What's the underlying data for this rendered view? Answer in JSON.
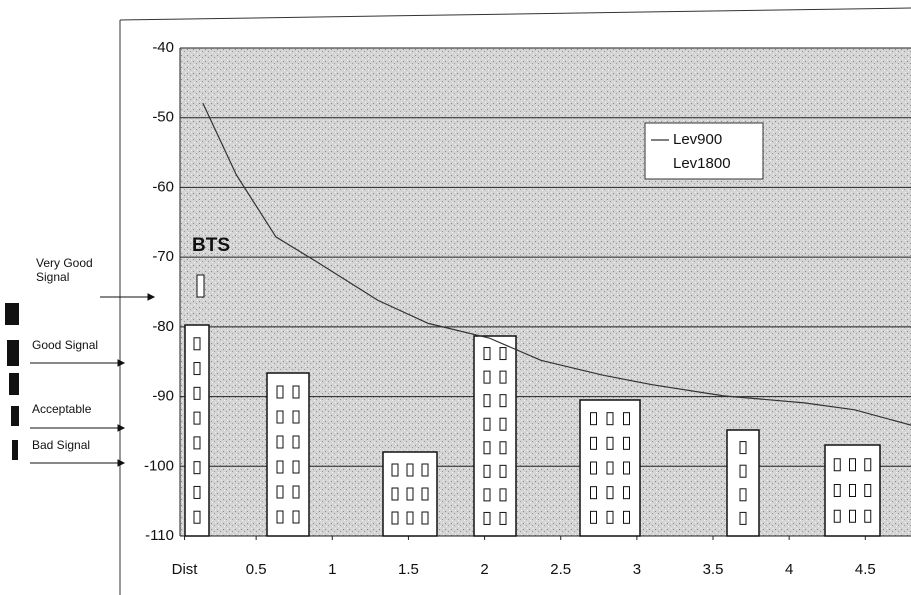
{
  "chart_data": {
    "type": "line",
    "annotations": [
      "BTS",
      "Very Good Signal",
      "Good Signal",
      "Acceptable",
      "Bad Signal"
    ],
    "x": [
      0.15,
      0.37,
      0.63,
      0.9,
      1.3,
      1.63,
      2.03,
      2.37,
      2.77,
      3.1,
      3.57,
      4.1,
      4.43,
      4.8
    ],
    "series": [
      {
        "name": "Lev900",
        "color": "#333333",
        "values": [
          -47.9,
          -58.2,
          -67.1,
          -70.7,
          -76.2,
          -79.5,
          -81.6,
          -84.8,
          -86.9,
          -88.3,
          -89.9,
          -90.9,
          -91.9,
          -94.1
        ]
      },
      {
        "name": "Lev1800",
        "color": "#ffffff",
        "values": [
          null,
          null,
          null,
          null,
          null,
          null,
          null,
          null,
          null,
          null,
          null,
          null,
          null,
          null
        ]
      }
    ],
    "xlim": [
      0,
      4.8
    ],
    "xticks": [
      {
        "value": 0.03,
        "label": "Dist"
      },
      0.5,
      1,
      1.5,
      2,
      2.5,
      3,
      3.5,
      4,
      4.5
    ],
    "ylim": [
      -110,
      -40
    ],
    "yticks": [
      -110,
      -100,
      -90,
      -80,
      -70,
      -60,
      -50,
      -40
    ],
    "grid": true
  }
}
